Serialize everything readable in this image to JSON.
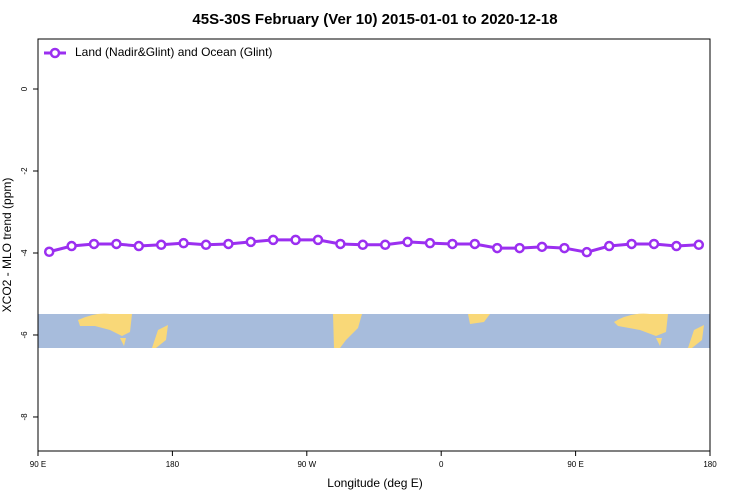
{
  "chart_data": {
    "type": "line",
    "title": "45S-30S February (Ver 10)   2015-01-01 to 2020-12-18",
    "x_label": "Longitude (deg E)",
    "y_label": "XCO2 - MLO trend (ppm)",
    "x": [
      97.5,
      112.5,
      127.5,
      142.5,
      157.5,
      172.5,
      187.5,
      202.5,
      217.5,
      232.5,
      247.5,
      262.5,
      277.5,
      292.5,
      307.5,
      322.5,
      337.5,
      352.5,
      367.5,
      382.5,
      397.5,
      412.5,
      427.5,
      442.5,
      457.5,
      472.5,
      487.5,
      502.5,
      517.5,
      532.5
    ],
    "series": [
      {
        "name": "Land (Nadir&Glint) and Ocean (Glint)",
        "color": "#9b2ff0",
        "values": [
          -3.97,
          -3.83,
          -3.78,
          -3.78,
          -3.83,
          -3.8,
          -3.76,
          -3.8,
          -3.78,
          -3.73,
          -3.68,
          -3.68,
          -3.68,
          -3.78,
          -3.8,
          -3.8,
          -3.73,
          -3.76,
          -3.78,
          -3.78,
          -3.88,
          -3.88,
          -3.85,
          -3.88,
          -3.98,
          -3.83,
          -3.78,
          -3.78,
          -3.83,
          -3.8
        ]
      }
    ],
    "xlim": [
      90,
      540
    ],
    "xticks": [
      {
        "value": 90,
        "label": "90 E"
      },
      180,
      {
        "value": 270,
        "label": "90 W"
      },
      {
        "value": 360,
        "label": "0"
      },
      {
        "value": 450,
        "label": "90 E"
      },
      {
        "value": 540,
        "label": "180"
      }
    ],
    "ylim": [
      -8.83,
      1.22
    ],
    "yticks": [
      0,
      -2,
      -4,
      -6,
      -8
    ],
    "legend": "top-left"
  }
}
